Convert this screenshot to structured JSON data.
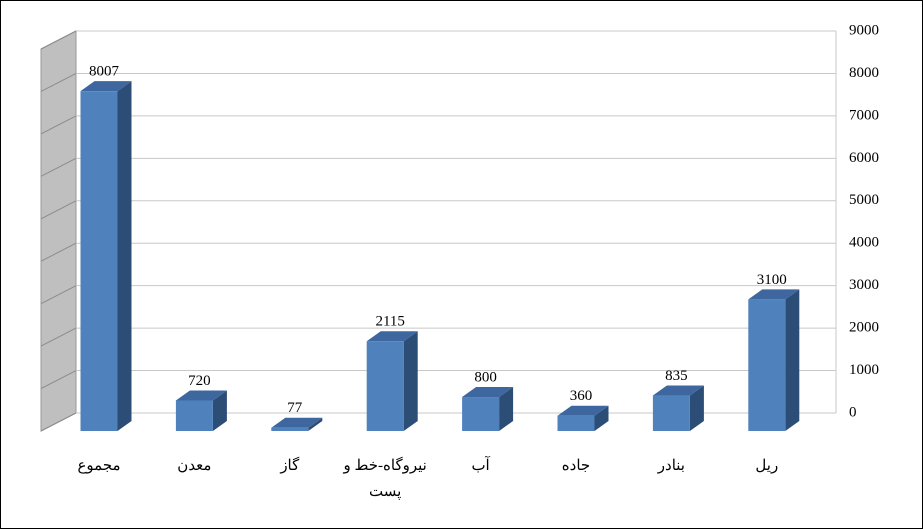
{
  "chart_data": {
    "type": "bar3d",
    "categories": [
      "مجموع",
      "معدن",
      "گاز",
      "نیروگاه-خط و پست",
      "آب",
      "جاده",
      "بنادر",
      "ریل"
    ],
    "values": [
      8007,
      720,
      77,
      2115,
      800,
      360,
      835,
      3100
    ],
    "color": "#4f81bd",
    "ylim": [
      0,
      9000
    ],
    "yticks": [
      0,
      1000,
      2000,
      3000,
      4000,
      5000,
      6000,
      7000,
      8000,
      9000
    ],
    "grid": true
  }
}
